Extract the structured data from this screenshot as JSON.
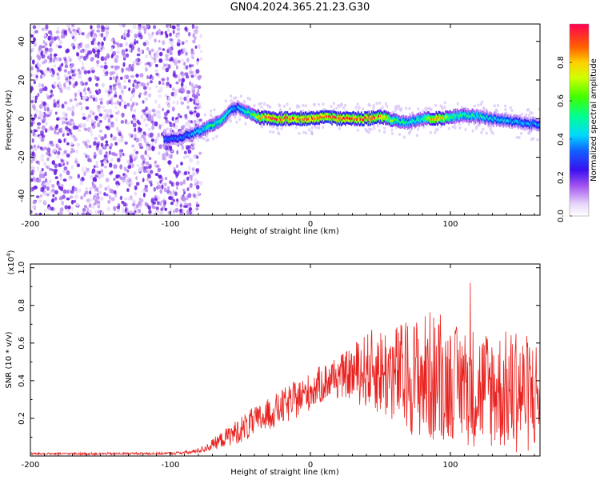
{
  "page": {
    "title": "GN04.2024.365.21.23.G30"
  },
  "chart_data": [
    {
      "type": "heatmap",
      "title": "GN04.2024.365.21.23.G30",
      "xlabel": "Height of straight line (km)",
      "ylabel": "Frequency (Hz)",
      "xlim": [
        -200,
        164
      ],
      "ylim": [
        -50,
        49
      ],
      "xticks": [
        -200,
        -100,
        0,
        100
      ],
      "xtick_labels": [
        "-200",
        "-100",
        "0",
        "100"
      ],
      "yticks": [
        40,
        20,
        0,
        -20,
        -40
      ],
      "ytick_labels": [
        "40",
        "20",
        "0",
        "-20",
        "-40"
      ],
      "colorbar": {
        "label": "Normalized spectral amplitude",
        "range": [
          0,
          1
        ],
        "ticks": [
          0.0,
          0.2,
          0.4,
          0.6,
          0.8
        ],
        "tick_labels": [
          "0.0",
          "0.2",
          "0.4",
          "0.6",
          "0.8"
        ]
      },
      "noise_region": {
        "x_range": [
          -200,
          -80
        ],
        "y_range": [
          -50,
          49
        ],
        "amplitude": 0.05
      },
      "ridge": {
        "x": [
          -105,
          -95,
          -85,
          -78,
          -70,
          -62,
          -58,
          -52,
          -47,
          -42,
          -38,
          -30,
          -20,
          -10,
          0,
          10,
          20,
          30,
          40,
          50,
          60,
          70,
          80,
          90,
          100,
          110,
          120,
          130,
          140,
          150,
          160
        ],
        "frequency": [
          -11,
          -10,
          -8,
          -6,
          -3,
          0,
          4,
          6,
          4,
          2,
          1,
          0,
          0,
          0,
          0,
          1,
          0,
          0,
          0,
          1,
          -1,
          -2,
          0,
          0,
          1,
          2,
          1,
          0,
          -1,
          -2,
          -3
        ],
        "amplitude": [
          0.35,
          0.35,
          0.4,
          0.5,
          0.55,
          0.55,
          0.45,
          0.4,
          0.5,
          0.6,
          0.8,
          0.95,
          0.95,
          0.9,
          0.95,
          0.95,
          0.95,
          0.95,
          0.95,
          0.9,
          0.6,
          0.5,
          0.55,
          0.95,
          0.6,
          0.55,
          0.5,
          0.45,
          0.45,
          0.4,
          0.4
        ]
      }
    },
    {
      "type": "line",
      "xlabel": "Height of straight line (km)",
      "ylabel": "SNR (10 * v/v)",
      "scale_label": "(x10",
      "scale_exponent": "4",
      "scale_close": ")",
      "xlim": [
        -200,
        164
      ],
      "ylim": [
        0,
        1.02
      ],
      "xticks": [
        -200,
        -100,
        0,
        100
      ],
      "xtick_labels": [
        "-200",
        "-100",
        "0",
        "100"
      ],
      "yticks": [
        0.2,
        0.4,
        0.6,
        0.8,
        1.0
      ],
      "ytick_labels": [
        "0.2",
        "0.4",
        "0.6",
        "0.8",
        "1.0"
      ],
      "series": [
        {
          "name": "SNR",
          "color": "#e8211e",
          "envelope_x": [
            -200,
            -150,
            -100,
            -85,
            -75,
            -65,
            -55,
            -45,
            -35,
            -25,
            -15,
            -5,
            5,
            15,
            25,
            35,
            45,
            55,
            65,
            75,
            85,
            95,
            105,
            115,
            125,
            135,
            145,
            155,
            164
          ],
          "envelope_mean": [
            0.012,
            0.012,
            0.014,
            0.02,
            0.04,
            0.08,
            0.12,
            0.16,
            0.2,
            0.24,
            0.28,
            0.32,
            0.37,
            0.41,
            0.43,
            0.45,
            0.46,
            0.44,
            0.43,
            0.42,
            0.42,
            0.4,
            0.39,
            0.37,
            0.36,
            0.35,
            0.34,
            0.33,
            0.32
          ],
          "envelope_amp": [
            0.006,
            0.006,
            0.007,
            0.01,
            0.02,
            0.04,
            0.06,
            0.08,
            0.08,
            0.09,
            0.1,
            0.1,
            0.1,
            0.11,
            0.12,
            0.18,
            0.22,
            0.26,
            0.28,
            0.32,
            0.36,
            0.32,
            0.3,
            0.33,
            0.32,
            0.32,
            0.33,
            0.32,
            0.3
          ]
        }
      ]
    }
  ]
}
